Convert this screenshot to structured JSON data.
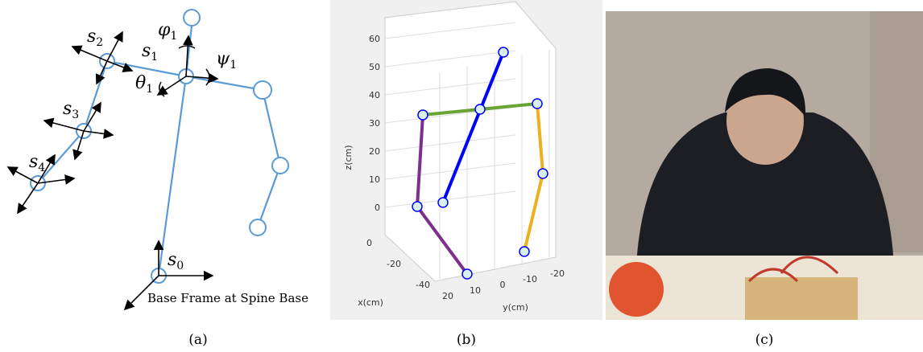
{
  "panel_a": {
    "labels": [
      {
        "symbol": "s",
        "subscript": "2"
      },
      {
        "symbol": "s",
        "subscript": "1"
      },
      {
        "symbol": "φ",
        "subscript": "1"
      },
      {
        "symbol": "ψ",
        "subscript": "1"
      },
      {
        "symbol": "θ",
        "subscript": "1"
      },
      {
        "symbol": "s",
        "subscript": "3"
      },
      {
        "symbol": "s",
        "subscript": "4"
      },
      {
        "symbol": "s",
        "subscript": "0"
      }
    ],
    "base_note": "Base Frame at Spine Base",
    "caption": "(a)"
  },
  "panel_b": {
    "z_ticks": [
      60,
      50,
      40,
      30,
      20,
      10,
      0
    ],
    "x_ticks": [
      0,
      -20,
      -40
    ],
    "y_ticks": [
      20,
      10,
      0,
      -10,
      -20
    ],
    "z_label": "z(cm)",
    "x_label": "x(cm)",
    "y_label": "y(cm)",
    "caption": "(b)"
  },
  "panel_c": {
    "caption": "(c)"
  }
}
